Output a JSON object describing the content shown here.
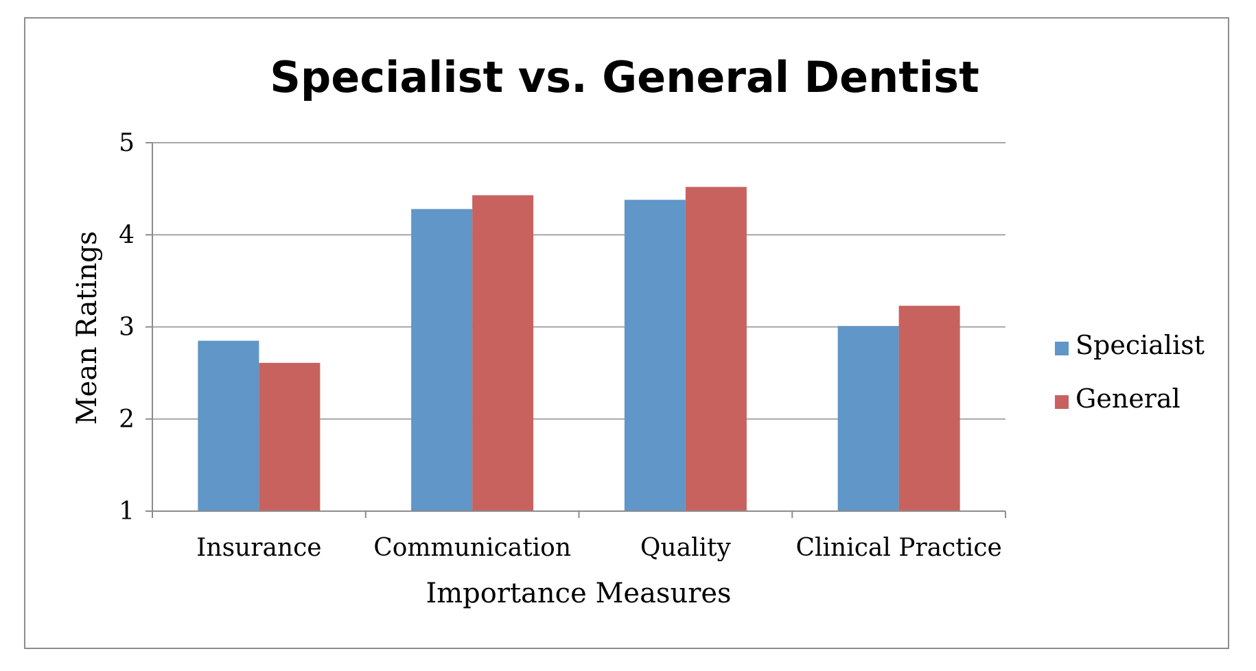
{
  "chart_data": {
    "type": "bar",
    "title": "Specialist vs. General Dentist",
    "xlabel": "Importance Measures",
    "ylabel": "Mean Ratings",
    "categories": [
      "Insurance",
      "Communication",
      "Quality",
      "Clinical Practice"
    ],
    "series": [
      {
        "name": "Specialist",
        "color": "#6096C8",
        "values": [
          2.85,
          4.28,
          4.38,
          3.01
        ]
      },
      {
        "name": "General",
        "color": "#C8625E",
        "values": [
          2.61,
          4.43,
          4.52,
          3.23
        ]
      }
    ],
    "ylim": [
      1,
      5
    ],
    "yticks": [
      "1",
      "2",
      "3",
      "4",
      "5"
    ],
    "grid": true,
    "legend_position": "right"
  }
}
